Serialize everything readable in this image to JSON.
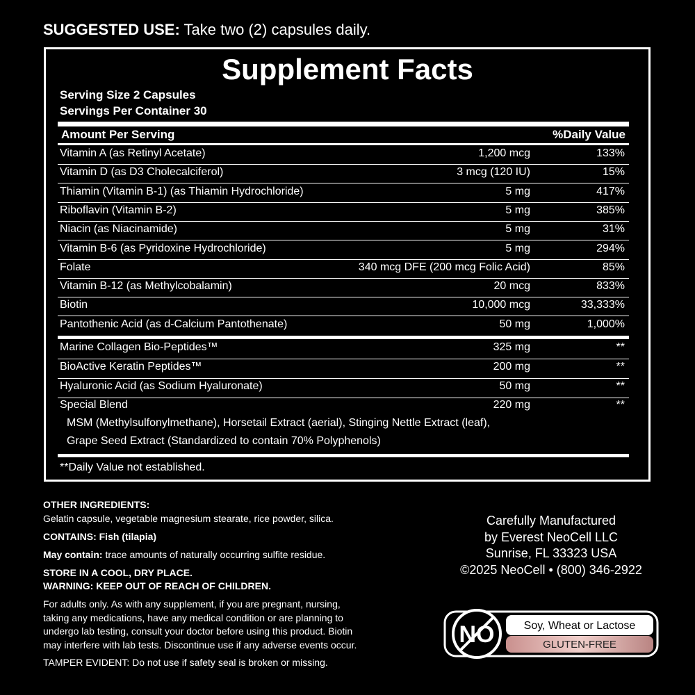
{
  "suggested_use": {
    "label": "SUGGESTED USE:",
    "text": "Take two (2) capsules daily."
  },
  "facts": {
    "title": "Supplement Facts",
    "serving_size": "Serving Size 2 Capsules",
    "servings_per_container": "Servings Per Container 30",
    "header": [
      "Amount Per Serving",
      "%Daily Value"
    ],
    "vitamins": [
      [
        "Vitamin A (as Retinyl Acetate)",
        "1,200 mcg",
        "133%"
      ],
      [
        "Vitamin D (as D3 Cholecalciferol)",
        "3 mcg (120 IU)",
        "15%"
      ],
      [
        "Thiamin (Vitamin B-1) (as Thiamin Hydrochloride)",
        "5 mg",
        "417%"
      ],
      [
        "Riboflavin (Vitamin B-2)",
        "5 mg",
        "385%"
      ],
      [
        "Niacin (as Niacinamide)",
        "5 mg",
        "31%"
      ],
      [
        "Vitamin B-6 (as Pyridoxine Hydrochloride)",
        "5 mg",
        "294%"
      ],
      [
        "Folate",
        "340 mcg DFE (200 mcg Folic Acid)",
        "85%"
      ],
      [
        "Vitamin B-12 (as Methylcobalamin)",
        "20 mcg",
        "833%"
      ],
      [
        "Biotin",
        "10,000 mcg",
        "33,333%"
      ],
      [
        "Pantothenic Acid (as d-Calcium Pantothenate)",
        "50 mg",
        "1,000%"
      ]
    ],
    "others": [
      [
        "Marine Collagen Bio-Peptides™",
        "325 mg",
        "**"
      ],
      [
        "BioActive Keratin Peptides™",
        "200 mg",
        "**"
      ],
      [
        "Hyaluronic Acid (as Sodium Hyaluronate)",
        "50 mg",
        "**"
      ],
      [
        "Special Blend",
        "220 mg",
        "**"
      ]
    ],
    "blend": [
      "MSM (Methylsulfonylmethane), Horsetail Extract (aerial), Stinging Nettle Extract (leaf),",
      "Grape Seed Extract (Standardized to contain 70% Polyphenols)"
    ],
    "footnote": "**Daily Value not established."
  },
  "info": [
    {
      "label": "OTHER INGREDIENTS:"
    },
    {
      "text": "Gelatin capsule, vegetable magnesium stearate, rice powder, silica."
    },
    {
      "label": "CONTAINS: Fish (tilapia)"
    },
    {
      "label": "May contain:",
      "text": " trace amounts of naturally occurring sulfite residue."
    },
    {
      "label": "STORE IN A COOL, DRY PLACE."
    },
    {
      "label": "WARNING: KEEP OUT OF REACH OF CHILDREN."
    },
    {
      "text": "For adults only. As with any supplement, if you are pregnant, nursing,"
    },
    {
      "text": "taking any medications, have any medical condition or are planning to"
    },
    {
      "text": "undergo lab testing, consult your doctor before using this product. Biotin"
    },
    {
      "text": "may interfere with lab tests. Discontinue use if any adverse events occur."
    },
    {
      "text": "TAMPER EVIDENT: Do not use if safety seal is broken or missing."
    }
  ],
  "manufacturer": [
    "Carefully Manufactured",
    "by Everest NeoCell LLC",
    "Sunrise, FL 33323 USA",
    "©2025 NeoCell • (800) 346-2922"
  ],
  "badge": {
    "no": "NO",
    "allergens": "Soy, Wheat or Lactose",
    "gluten": "GLUTEN-FREE"
  }
}
